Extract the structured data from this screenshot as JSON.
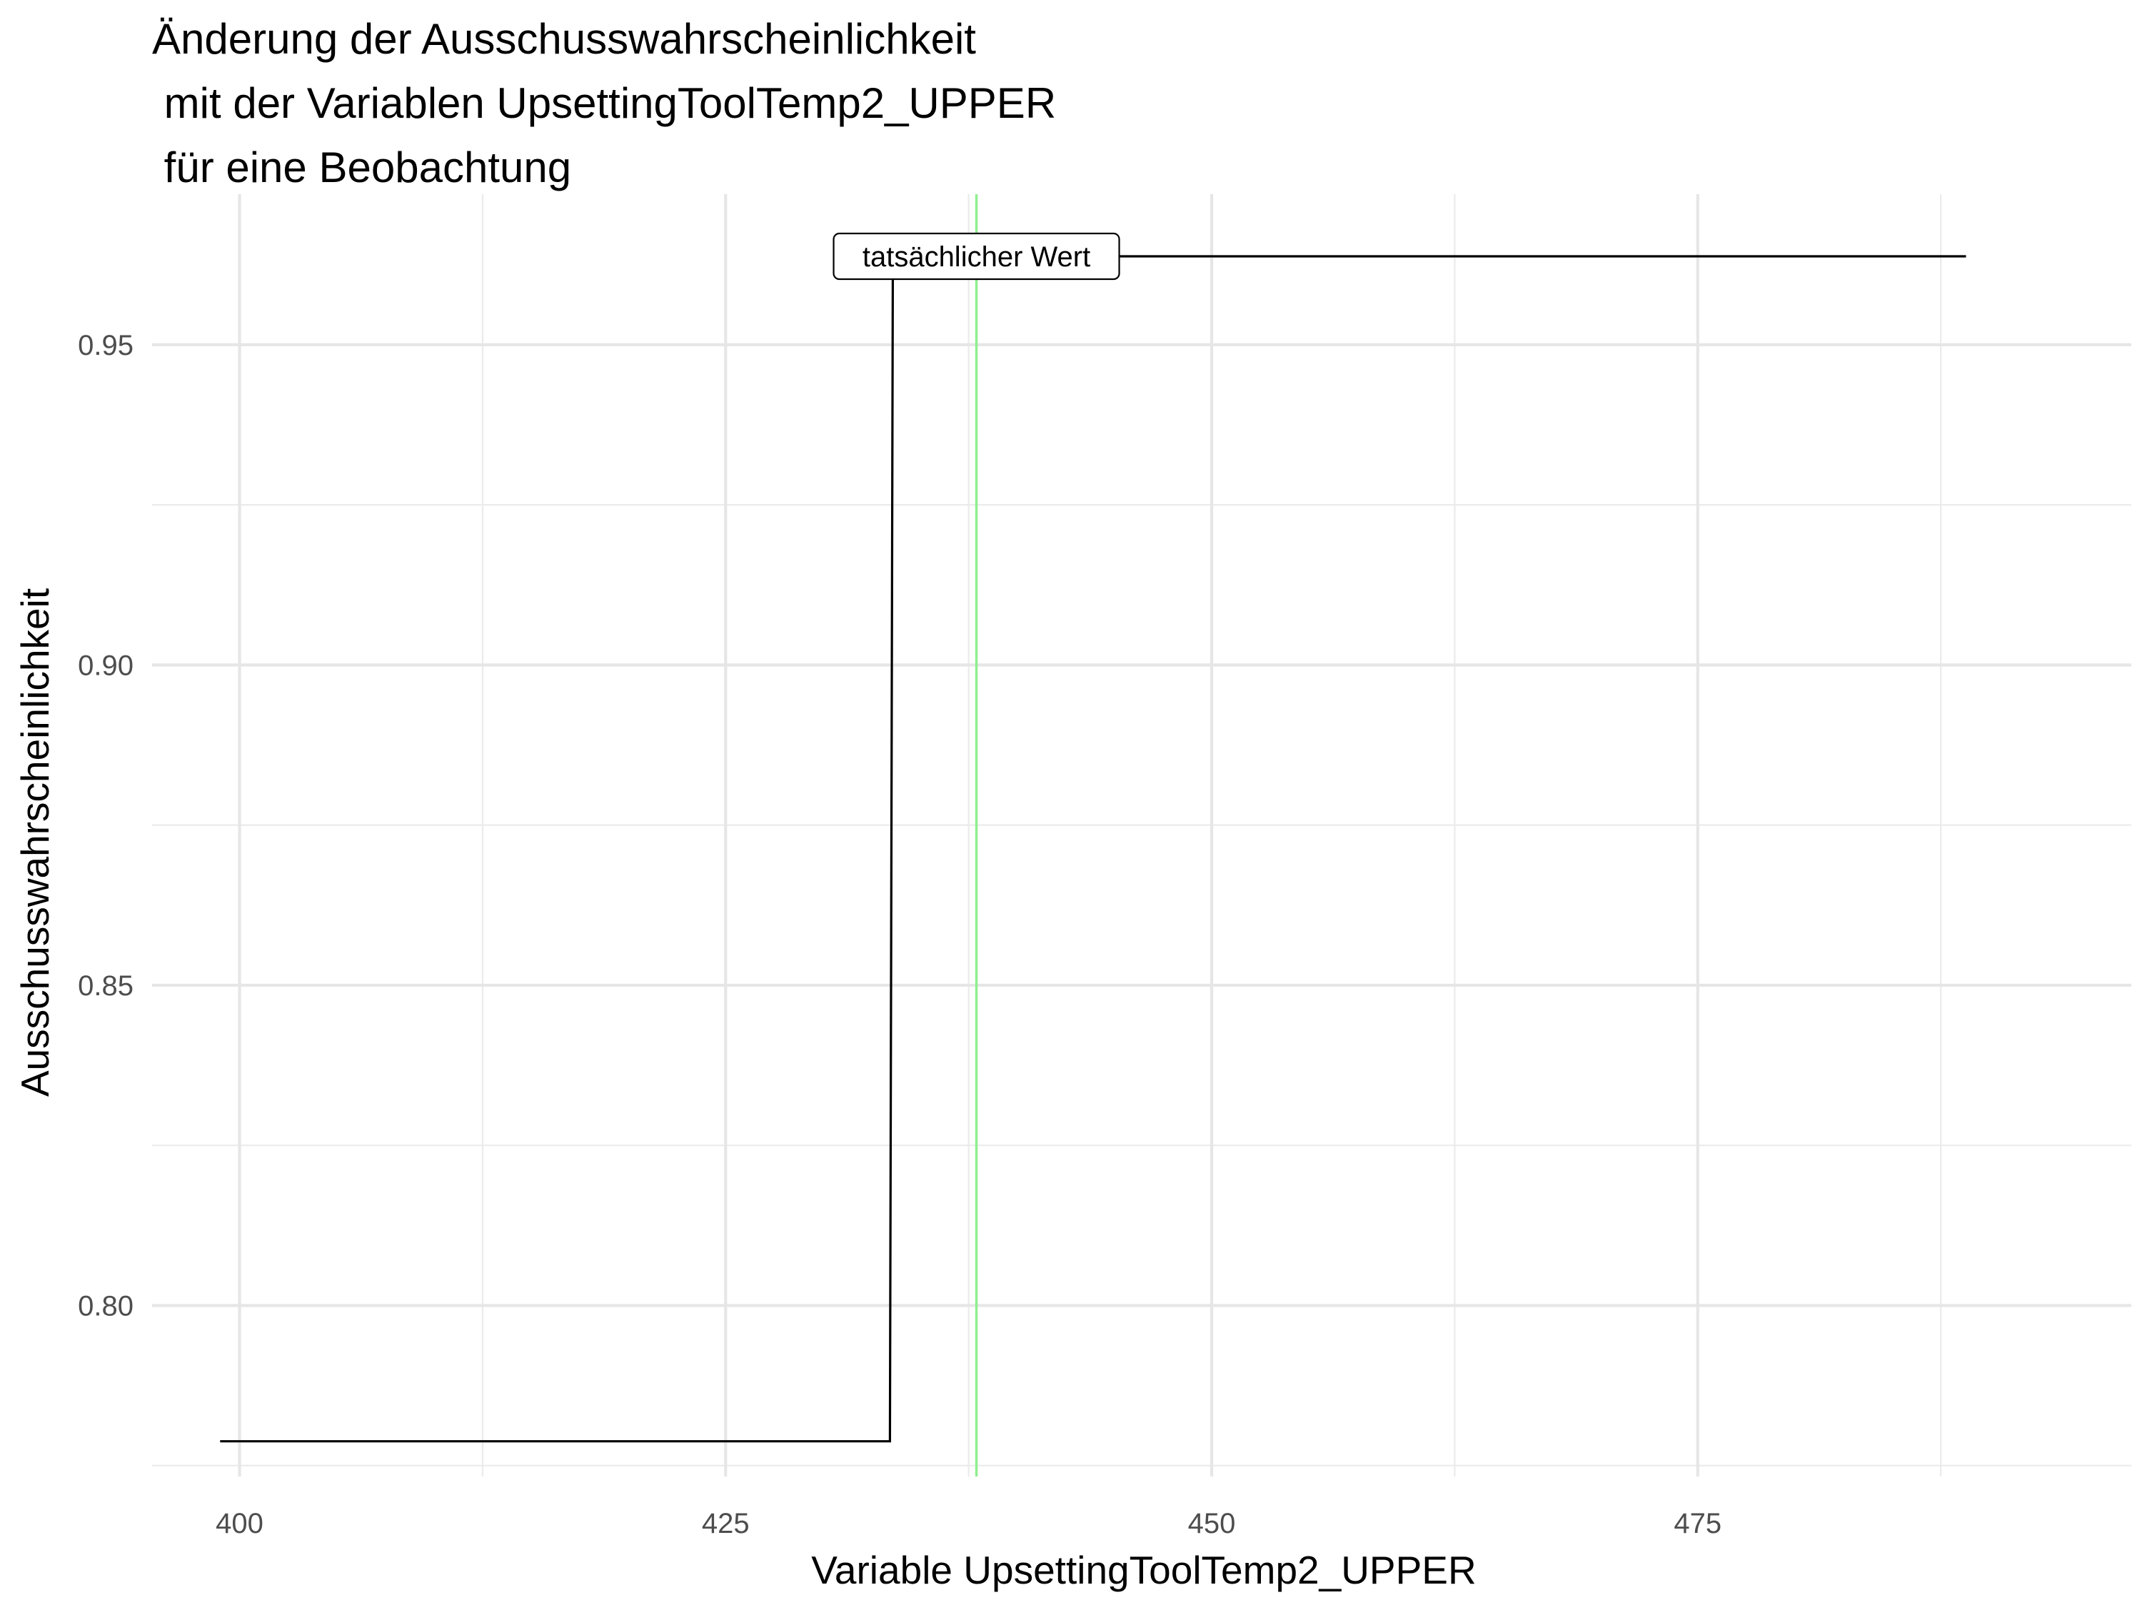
{
  "chart_data": {
    "type": "line",
    "title_lines": [
      "Änderung der Ausschusswahrscheinlichkeit",
      " mit der Variablen UpsettingToolTemp2_UPPER",
      " für eine Beobachtung"
    ],
    "xlabel": "Variable UpsettingToolTemp2_UPPER",
    "ylabel": "Ausschusswahrscheinlichkeit",
    "xlim": [
      395.5,
      497.3
    ],
    "ylim": [
      0.7733,
      0.9735
    ],
    "x_ticks": [
      {
        "value": 400,
        "label": "400"
      },
      {
        "value": 425,
        "label": "425"
      },
      {
        "value": 450,
        "label": "450"
      },
      {
        "value": 475,
        "label": "475"
      }
    ],
    "y_ticks": [
      {
        "value": 0.8,
        "label": "0.80"
      },
      {
        "value": 0.85,
        "label": "0.85"
      },
      {
        "value": 0.9,
        "label": "0.90"
      },
      {
        "value": 0.95,
        "label": "0.95"
      }
    ],
    "x_minor": [
      412.5,
      437.5,
      462.5,
      487.5
    ],
    "y_minor": [
      0.775,
      0.825,
      0.875,
      0.925
    ],
    "grid": true,
    "series": [
      {
        "color": "#000000",
        "step": true,
        "x": [
          399,
          433.45,
          433.6,
          488.8
        ],
        "y": [
          0.7788,
          0.7788,
          0.9638,
          0.9638
        ]
      }
    ],
    "reference_line": {
      "x": 437.9,
      "color": "#90EE90",
      "label": "tatsächlicher Wert",
      "label_y": 0.9638
    }
  }
}
